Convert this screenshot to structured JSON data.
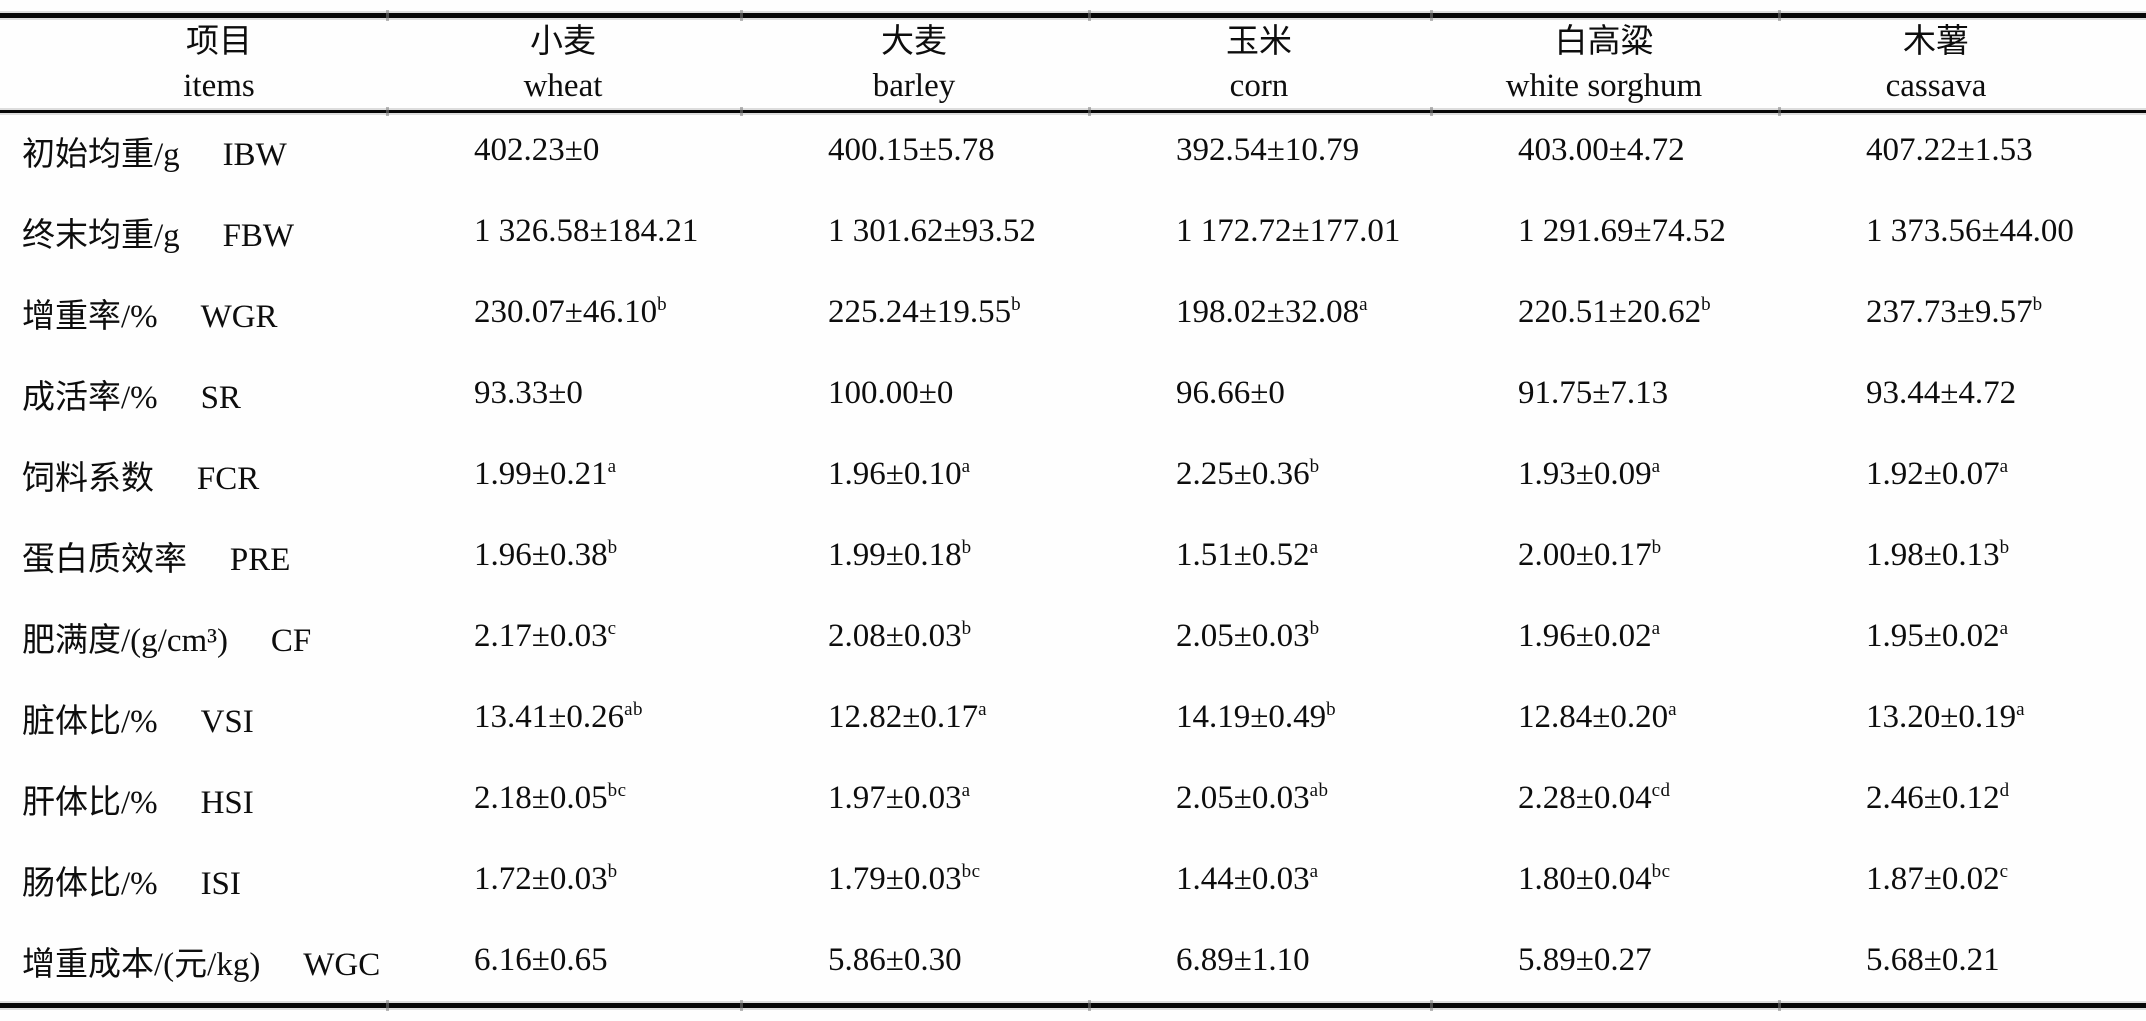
{
  "colors": {
    "ink": "#0d0d0d",
    "rule": "#070707",
    "paper": "#fefefe"
  },
  "table": {
    "columns": [
      {
        "name_cn": "项目",
        "name_en": "items"
      },
      {
        "name_cn": "小麦",
        "name_en": "wheat"
      },
      {
        "name_cn": "大麦",
        "name_en": "barley"
      },
      {
        "name_cn": "玉米",
        "name_en": "corn"
      },
      {
        "name_cn": "白高粱",
        "name_en": "white sorghum"
      },
      {
        "name_cn": "木薯",
        "name_en": "cassava"
      }
    ],
    "rows": [
      {
        "label_cn": "初始均重/g",
        "label_en": "IBW",
        "cells": [
          {
            "text": "402.23±0",
            "sup": ""
          },
          {
            "text": "400.15±5.78",
            "sup": ""
          },
          {
            "text": "392.54±10.79",
            "sup": ""
          },
          {
            "text": "403.00±4.72",
            "sup": ""
          },
          {
            "text": "407.22±1.53",
            "sup": ""
          }
        ]
      },
      {
        "label_cn": "终末均重/g",
        "label_en": "FBW",
        "cells": [
          {
            "text": "1 326.58±184.21",
            "sup": ""
          },
          {
            "text": "1 301.62±93.52",
            "sup": ""
          },
          {
            "text": "1 172.72±177.01",
            "sup": ""
          },
          {
            "text": "1 291.69±74.52",
            "sup": ""
          },
          {
            "text": "1 373.56±44.00",
            "sup": ""
          }
        ]
      },
      {
        "label_cn": "增重率/%",
        "label_en": "WGR",
        "cells": [
          {
            "text": "230.07±46.10",
            "sup": "b"
          },
          {
            "text": "225.24±19.55",
            "sup": "b"
          },
          {
            "text": "198.02±32.08",
            "sup": "a"
          },
          {
            "text": "220.51±20.62",
            "sup": "b"
          },
          {
            "text": "237.73±9.57",
            "sup": "b"
          }
        ]
      },
      {
        "label_cn": "成活率/%",
        "label_en": "SR",
        "cells": [
          {
            "text": "93.33±0",
            "sup": ""
          },
          {
            "text": "100.00±0",
            "sup": ""
          },
          {
            "text": "96.66±0",
            "sup": ""
          },
          {
            "text": "91.75±7.13",
            "sup": ""
          },
          {
            "text": "93.44±4.72",
            "sup": ""
          }
        ]
      },
      {
        "label_cn": "饲料系数",
        "label_en": "FCR",
        "cells": [
          {
            "text": "1.99±0.21",
            "sup": "a"
          },
          {
            "text": "1.96±0.10",
            "sup": "a"
          },
          {
            "text": "2.25±0.36",
            "sup": "b"
          },
          {
            "text": "1.93±0.09",
            "sup": "a"
          },
          {
            "text": "1.92±0.07",
            "sup": "a"
          }
        ]
      },
      {
        "label_cn": "蛋白质效率",
        "label_en": "PRE",
        "cells": [
          {
            "text": "1.96±0.38",
            "sup": "b"
          },
          {
            "text": "1.99±0.18",
            "sup": "b"
          },
          {
            "text": "1.51±0.52",
            "sup": "a"
          },
          {
            "text": "2.00±0.17",
            "sup": "b"
          },
          {
            "text": "1.98±0.13",
            "sup": "b"
          }
        ]
      },
      {
        "label_cn": "肥满度/(g/cm³)",
        "label_en": "CF",
        "cells": [
          {
            "text": "2.17±0.03",
            "sup": "c"
          },
          {
            "text": "2.08±0.03",
            "sup": "b"
          },
          {
            "text": "2.05±0.03",
            "sup": "b"
          },
          {
            "text": "1.96±0.02",
            "sup": "a"
          },
          {
            "text": "1.95±0.02",
            "sup": "a"
          }
        ]
      },
      {
        "label_cn": "脏体比/%",
        "label_en": "VSI",
        "cells": [
          {
            "text": "13.41±0.26",
            "sup": "ab"
          },
          {
            "text": "12.82±0.17",
            "sup": "a"
          },
          {
            "text": "14.19±0.49",
            "sup": "b"
          },
          {
            "text": "12.84±0.20",
            "sup": "a"
          },
          {
            "text": "13.20±0.19",
            "sup": "a"
          }
        ]
      },
      {
        "label_cn": "肝体比/%",
        "label_en": "HSI",
        "cells": [
          {
            "text": "2.18±0.05",
            "sup": "bc"
          },
          {
            "text": "1.97±0.03",
            "sup": "a"
          },
          {
            "text": "2.05±0.03",
            "sup": "ab"
          },
          {
            "text": "2.28±0.04",
            "sup": "cd"
          },
          {
            "text": "2.46±0.12",
            "sup": "d"
          }
        ]
      },
      {
        "label_cn": "肠体比/%",
        "label_en": "ISI",
        "cells": [
          {
            "text": "1.72±0.03",
            "sup": "b"
          },
          {
            "text": "1.79±0.03",
            "sup": "bc"
          },
          {
            "text": "1.44±0.03",
            "sup": "a"
          },
          {
            "text": "1.80±0.04",
            "sup": "bc"
          },
          {
            "text": "1.87±0.02",
            "sup": "c"
          }
        ]
      },
      {
        "label_cn": "增重成本/(元/kg)",
        "label_en": "WGC",
        "cells": [
          {
            "text": "6.16±0.65",
            "sup": ""
          },
          {
            "text": "5.86±0.30",
            "sup": ""
          },
          {
            "text": "6.89±1.10",
            "sup": ""
          },
          {
            "text": "5.89±0.27",
            "sup": ""
          },
          {
            "text": "5.68±0.21",
            "sup": ""
          }
        ]
      }
    ]
  }
}
